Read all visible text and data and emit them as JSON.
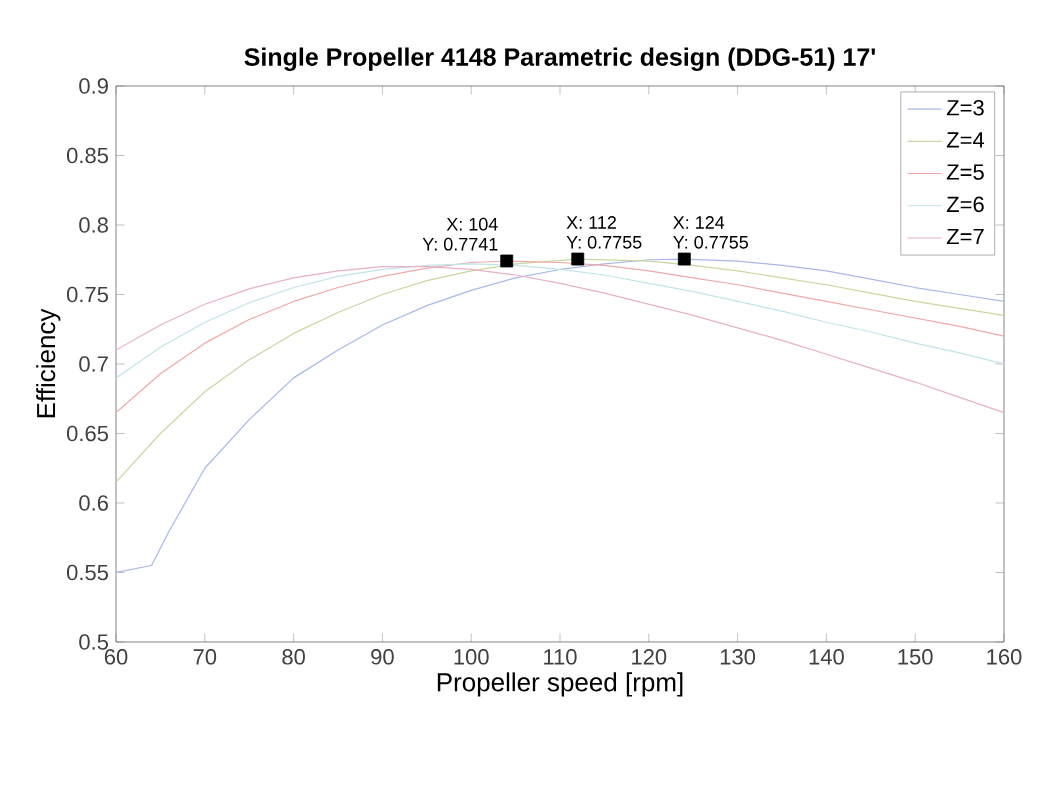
{
  "chart_data": {
    "type": "line",
    "title": "Single Propeller 4148 Parametric design (DDG-51) 17'",
    "xlabel": "Propeller speed [rpm]",
    "ylabel": "Efficiency",
    "xlim": [
      60,
      160
    ],
    "ylim": [
      0.5,
      0.9
    ],
    "xticks": [
      60,
      70,
      80,
      90,
      100,
      110,
      120,
      130,
      140,
      150,
      160
    ],
    "yticks": [
      0.5,
      0.55,
      0.6,
      0.65,
      0.7,
      0.75,
      0.8,
      0.85,
      0.9
    ],
    "legend": "top right",
    "grid": false,
    "marker": "none",
    "line_style": "solid",
    "series": [
      {
        "name": "Z=3",
        "color": "#a8b8e8",
        "x": [
          60,
          64,
          66,
          70,
          75,
          80,
          85,
          90,
          95,
          100,
          105,
          110,
          115,
          120,
          124,
          130,
          135,
          140,
          145,
          150,
          155,
          160
        ],
        "values": [
          0.55,
          0.555,
          0.58,
          0.625,
          0.66,
          0.69,
          0.71,
          0.728,
          0.742,
          0.753,
          0.762,
          0.768,
          0.772,
          0.775,
          0.7755,
          0.774,
          0.771,
          0.767,
          0.761,
          0.755,
          0.75,
          0.745
        ]
      },
      {
        "name": "Z=4",
        "color": "#c8d8a0",
        "x": [
          60,
          65,
          70,
          75,
          80,
          85,
          90,
          95,
          100,
          105,
          112,
          120,
          125,
          130,
          135,
          140,
          145,
          150,
          155,
          160
        ],
        "values": [
          0.615,
          0.65,
          0.68,
          0.703,
          0.722,
          0.737,
          0.75,
          0.76,
          0.767,
          0.772,
          0.7755,
          0.774,
          0.771,
          0.767,
          0.762,
          0.757,
          0.751,
          0.745,
          0.74,
          0.735
        ]
      },
      {
        "name": "Z=5",
        "color": "#f0a8a8",
        "x": [
          60,
          65,
          70,
          75,
          80,
          85,
          90,
          95,
          100,
          104,
          110,
          115,
          120,
          125,
          130,
          135,
          140,
          145,
          150,
          155,
          160
        ],
        "values": [
          0.665,
          0.693,
          0.715,
          0.732,
          0.745,
          0.755,
          0.763,
          0.769,
          0.773,
          0.7741,
          0.773,
          0.771,
          0.767,
          0.762,
          0.757,
          0.751,
          0.745,
          0.739,
          0.733,
          0.727,
          0.72
        ]
      },
      {
        "name": "Z=6",
        "color": "#c0e4e8",
        "x": [
          60,
          65,
          70,
          75,
          80,
          85,
          90,
          95,
          100,
          105,
          110,
          115,
          120,
          125,
          130,
          135,
          140,
          145,
          150,
          155,
          160
        ],
        "values": [
          0.69,
          0.712,
          0.73,
          0.744,
          0.755,
          0.763,
          0.768,
          0.771,
          0.772,
          0.771,
          0.768,
          0.764,
          0.758,
          0.752,
          0.745,
          0.738,
          0.73,
          0.723,
          0.715,
          0.708,
          0.7
        ]
      },
      {
        "name": "Z=7",
        "color": "#e8b0c8",
        "x": [
          60,
          65,
          70,
          75,
          80,
          85,
          90,
          95,
          100,
          105,
          110,
          115,
          120,
          125,
          130,
          135,
          140,
          145,
          150,
          155,
          160
        ],
        "values": [
          0.71,
          0.728,
          0.743,
          0.754,
          0.762,
          0.767,
          0.77,
          0.77,
          0.768,
          0.764,
          0.758,
          0.751,
          0.743,
          0.735,
          0.726,
          0.717,
          0.707,
          0.697,
          0.687,
          0.676,
          0.665
        ]
      }
    ],
    "annotations": [
      {
        "text": "X: 104",
        "x": 104,
        "y": 0.7741
      },
      {
        "text": "Y: 0.7741",
        "x": 104,
        "y": 0.7741
      },
      {
        "text": "X: 112",
        "x": 112,
        "y": 0.7755
      },
      {
        "text": "Y: 0.7755",
        "x": 112,
        "y": 0.7755
      },
      {
        "text": "X: 124",
        "x": 124,
        "y": 0.7755
      },
      {
        "text": "Y: 0.7755",
        "x": 124,
        "y": 0.7755
      }
    ]
  }
}
